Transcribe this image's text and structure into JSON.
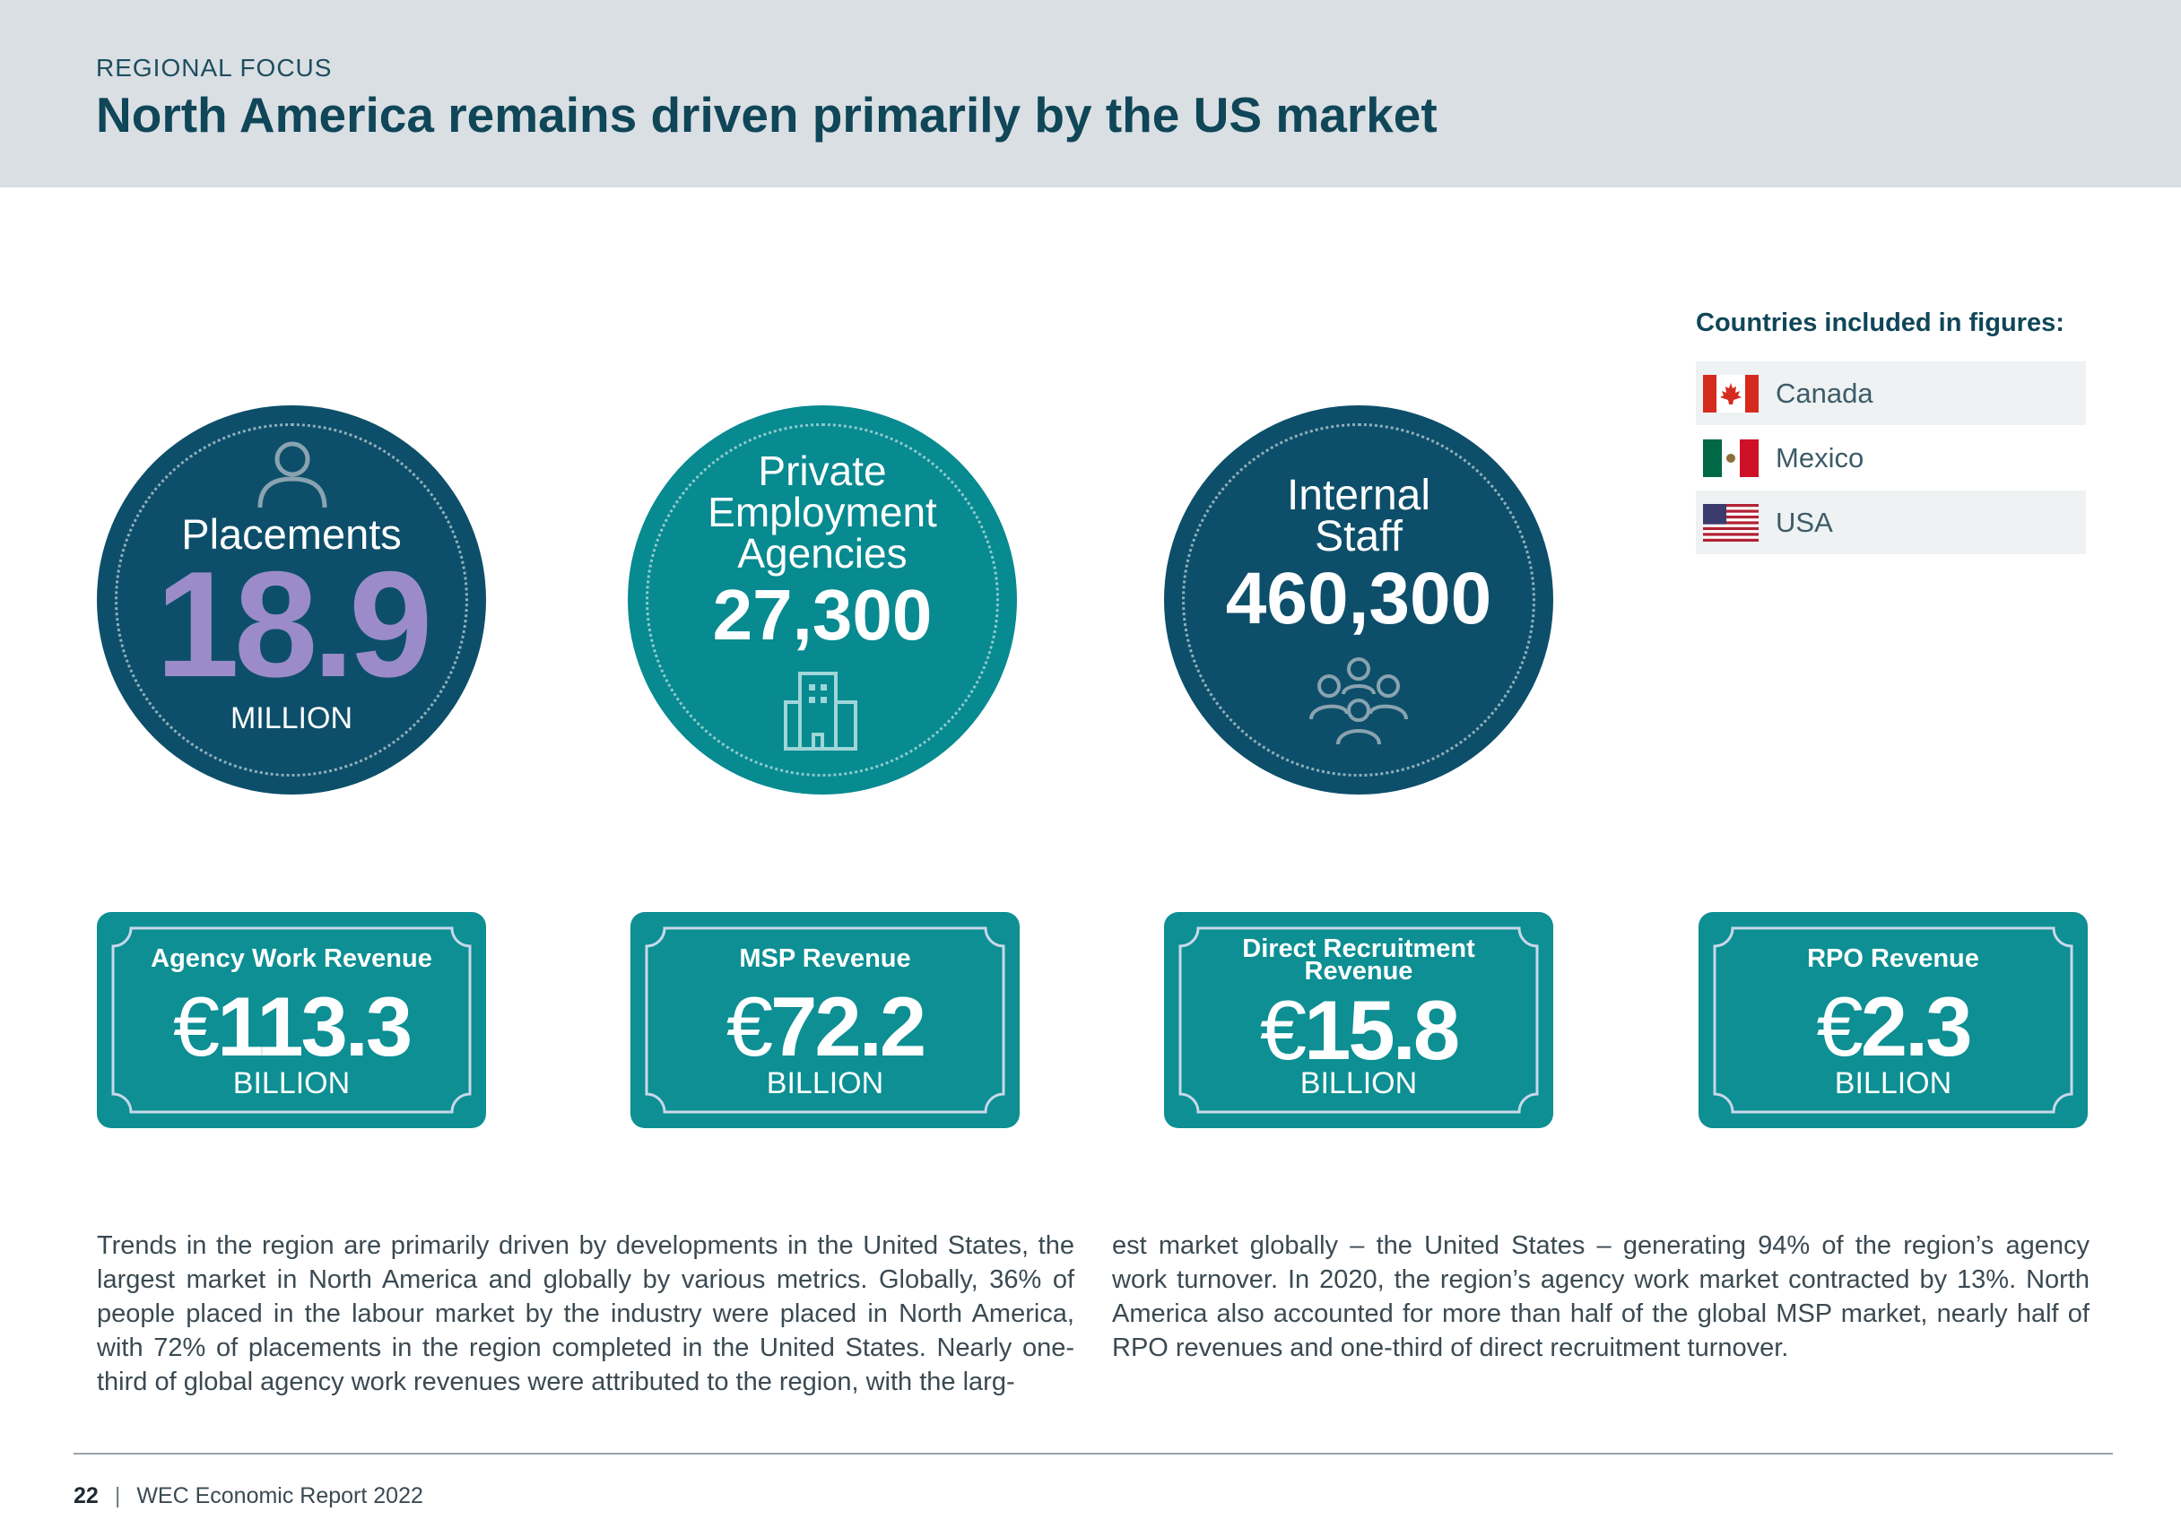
{
  "header": {
    "kicker": "REGIONAL FOCUS",
    "title": "North America remains driven primarily by the US market"
  },
  "countries": {
    "heading": "Countries included in figures:",
    "items": [
      {
        "name": "Canada",
        "flag": "canada-flag-icon"
      },
      {
        "name": "Mexico",
        "flag": "mexico-flag-icon"
      },
      {
        "name": "USA",
        "flag": "usa-flag-icon"
      }
    ]
  },
  "stats": {
    "placements": {
      "label": "Placements",
      "value": "18.9",
      "unit": "MILLION",
      "icon": "person-icon"
    },
    "agencies": {
      "label_line1": "Private",
      "label_line2": "Employment",
      "label_line3": "Agencies",
      "value": "27,300",
      "icon": "building-icon"
    },
    "staff": {
      "label_line1": "Internal",
      "label_line2": "Staff",
      "value": "460,300",
      "icon": "people-group-icon"
    }
  },
  "revenues": [
    {
      "label": "Agency Work Revenue",
      "currency": "€",
      "value": "113.3",
      "unit": "BILLION"
    },
    {
      "label": "MSP Revenue",
      "currency": "€",
      "value": "72.2",
      "unit": "BILLION"
    },
    {
      "label_line1": "Direct Recruitment",
      "label_line2": "Revenue",
      "currency": "€",
      "value": "15.8",
      "unit": "BILLION"
    },
    {
      "label": "RPO Revenue",
      "currency": "€",
      "value": "2.3",
      "unit": "BILLION"
    }
  ],
  "body": {
    "col1": "Trends in the region are primarily driven by developments in the United States, the largest market in North America and globally by various metrics. Globally, 36% of people placed in the labour market by the industry were placed in North America, with 72% of placements in the region completed in the United States. Nearly one-third of global agency work revenues were attributed to the region, with the larg-",
    "col2": "est market globally – the United States – generating 94% of the region’s agency work turnover. In 2020, the region’s agency work market contracted by 13%. North America also accounted for more than half of the global MSP market, nearly half of RPO revenues and one-third of direct recruitment turnover."
  },
  "footer": {
    "page_number": "22",
    "separator": "|",
    "report": "WEC Economic Report 2022"
  },
  "colors": {
    "dark_teal": "#0d4f6a",
    "teal": "#078a90",
    "card_teal": "#0d8f93",
    "lavender": "#9b8cc9",
    "header_band": "#dadfe3"
  }
}
